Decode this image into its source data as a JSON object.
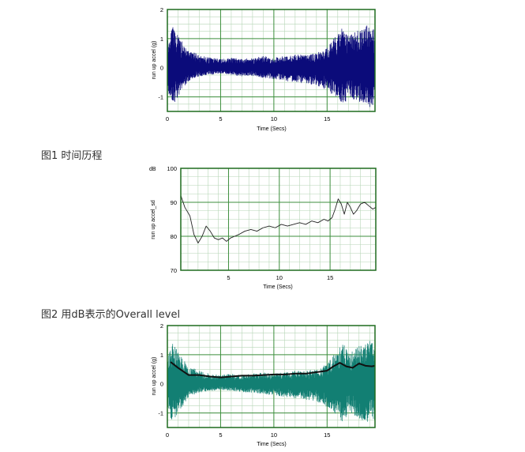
{
  "captions": {
    "fig1": "图1 时间历程",
    "fig2": "图2 用dB表示的Overall level"
  },
  "colors": {
    "frame": "#1f6b1f",
    "grid_major": "#3e8f3e",
    "grid_minor": "#b7d6b7",
    "series_blue": "#0b0b7a",
    "series_teal": "#127f73",
    "overall_line": "#111111",
    "db_line": "#222222"
  },
  "chart_data": [
    {
      "id": "chart1",
      "type": "line",
      "title": "",
      "xlabel": "Time (Secs)",
      "ylabel": "run up accel (g)",
      "xlim": [
        0,
        19.5
      ],
      "ylim": [
        -1.5,
        2
      ],
      "xticks": [
        "0",
        "5",
        "10",
        "15"
      ],
      "yticks": [
        "2",
        "1",
        "0",
        "-1"
      ],
      "grid": true,
      "series": [
        {
          "color": "blue",
          "style": "dense vibration signal (envelope)",
          "time": [
            0,
            0.5,
            1,
            2,
            3,
            4,
            5,
            6,
            7,
            8,
            9,
            10,
            11,
            12,
            13,
            14,
            15,
            16,
            16.5,
            17,
            18,
            19,
            19.5
          ],
          "upper": [
            1.0,
            1.4,
            1.1,
            0.6,
            0.45,
            0.35,
            0.3,
            0.35,
            0.3,
            0.35,
            0.4,
            0.35,
            0.4,
            0.45,
            0.45,
            0.5,
            0.7,
            1.2,
            1.4,
            1.1,
            1.3,
            1.5,
            1.4
          ],
          "lower": [
            -0.9,
            -1.3,
            -1.0,
            -0.45,
            -0.3,
            -0.25,
            -0.2,
            -0.25,
            -0.3,
            -0.3,
            -0.35,
            -0.4,
            -0.45,
            -0.5,
            -0.55,
            -0.6,
            -0.8,
            -1.1,
            -1.35,
            -1.0,
            -1.2,
            -1.35,
            -1.3
          ]
        }
      ]
    },
    {
      "id": "chart2",
      "type": "line",
      "title": "",
      "xlabel": "Time (Secs)",
      "ylabel": "run up accel_sd",
      "units_label": "dB",
      "xlim": [
        0.3,
        19.5
      ],
      "ylim": [
        70,
        100
      ],
      "xticks": [
        "5",
        "10",
        "15"
      ],
      "yticks": [
        "100",
        "90",
        "80",
        "70"
      ],
      "grid": true,
      "series": [
        {
          "x": [
            0.3,
            0.7,
            1.2,
            1.6,
            2.0,
            2.4,
            2.8,
            3.2,
            3.6,
            4.0,
            4.4,
            4.8,
            5.2,
            5.6,
            6.0,
            6.6,
            7.2,
            7.8,
            8.4,
            9.0,
            9.6,
            10.2,
            10.8,
            11.4,
            12.0,
            12.6,
            13.2,
            13.8,
            14.4,
            14.8,
            15.2,
            15.5,
            15.8,
            16.1,
            16.4,
            16.7,
            17.0,
            17.3,
            17.6,
            18.0,
            18.4,
            18.8,
            19.2,
            19.5
          ],
          "y": [
            92,
            88.5,
            86,
            80.5,
            78,
            80,
            83,
            81.5,
            79.5,
            79,
            79.5,
            78.5,
            79.5,
            80,
            80.5,
            81.5,
            82,
            81.5,
            82.5,
            83,
            82.5,
            83.5,
            83,
            83.5,
            84,
            83.5,
            84.5,
            84,
            85,
            84.5,
            85.5,
            88,
            91,
            89.5,
            86.5,
            90,
            88.5,
            86.5,
            87.5,
            89.5,
            90,
            89,
            88,
            88.5
          ]
        }
      ]
    },
    {
      "id": "chart3",
      "type": "line",
      "title": "",
      "xlabel": "Time (Secs)",
      "ylabel": "run up accel (g)",
      "xlim": [
        0,
        19.5
      ],
      "ylim": [
        -1.5,
        2
      ],
      "xticks": [
        "0",
        "5",
        "10",
        "15"
      ],
      "yticks": [
        "2",
        "1",
        "0",
        "-1"
      ],
      "grid": true,
      "series": [
        {
          "color": "teal",
          "style": "dense vibration signal (envelope)",
          "time": [
            0,
            0.5,
            1,
            2,
            3,
            4,
            5,
            6,
            7,
            8,
            9,
            10,
            11,
            12,
            13,
            14,
            15,
            16,
            16.5,
            17,
            18,
            19,
            19.5
          ],
          "upper": [
            1.0,
            1.4,
            1.1,
            0.6,
            0.45,
            0.35,
            0.3,
            0.35,
            0.3,
            0.35,
            0.4,
            0.35,
            0.4,
            0.45,
            0.45,
            0.5,
            0.7,
            1.2,
            1.4,
            1.1,
            1.3,
            1.5,
            1.4
          ],
          "lower": [
            -0.9,
            -1.3,
            -1.0,
            -0.45,
            -0.3,
            -0.25,
            -0.2,
            -0.25,
            -0.3,
            -0.3,
            -0.35,
            -0.4,
            -0.45,
            -0.5,
            -0.55,
            -0.6,
            -0.8,
            -1.1,
            -1.35,
            -1.0,
            -1.2,
            -1.35,
            -1.3
          ]
        },
        {
          "color": "black",
          "style": "overall level overlay",
          "x": [
            0.3,
            1,
            2,
            3,
            4,
            5,
            6,
            7,
            8,
            9,
            10,
            11,
            12,
            13,
            14,
            15,
            15.6,
            16.2,
            16.8,
            17.4,
            18,
            18.6,
            19.2,
            19.5
          ],
          "y": [
            0.75,
            0.55,
            0.3,
            0.3,
            0.25,
            0.22,
            0.25,
            0.28,
            0.28,
            0.3,
            0.32,
            0.32,
            0.35,
            0.35,
            0.4,
            0.45,
            0.6,
            0.72,
            0.6,
            0.55,
            0.7,
            0.62,
            0.6,
            0.62
          ]
        }
      ]
    }
  ]
}
